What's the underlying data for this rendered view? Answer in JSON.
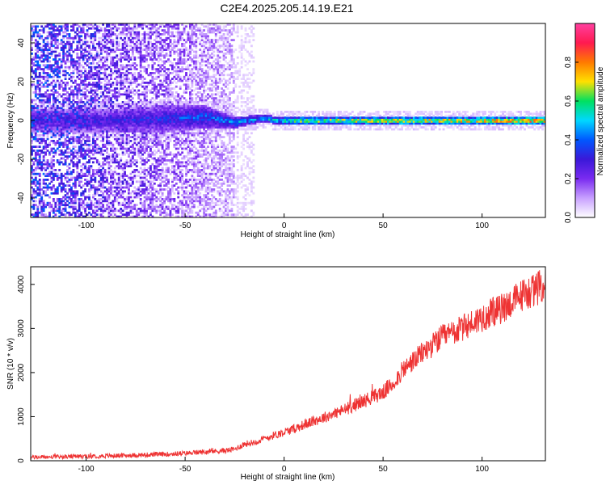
{
  "title": "C2E4.2025.205.14.19.E21",
  "chart_data": [
    {
      "type": "heatmap",
      "xlabel": "Height of straight line (km)",
      "ylabel": "Frequency (Hz)",
      "xlim": [
        -128,
        132
      ],
      "ylim": [
        -50,
        50
      ],
      "x_ticks": [
        -100,
        -50,
        0,
        50,
        100
      ],
      "y_ticks": [
        -40,
        -20,
        0,
        20,
        40
      ],
      "colorbar": {
        "label": "Normalized spectral amplitude",
        "range": [
          0,
          1
        ],
        "ticks": [
          "0.0",
          "0.2",
          "0.4",
          "0.6",
          "0.8"
        ],
        "colormap": [
          "#ffffff",
          "#c8a0ff",
          "#7a2bf0",
          "#3a18d8",
          "#0058ff",
          "#00d8ff",
          "#00e060",
          "#ffe000",
          "#ff7a00",
          "#ff1a50",
          "#ff40a0"
        ]
      },
      "band": [
        {
          "x": -90,
          "center": 0,
          "halfwidth": 6,
          "amp": 0.3
        },
        {
          "x": -60,
          "center": 1,
          "halfwidth": 7,
          "amp": 0.35
        },
        {
          "x": -40,
          "center": 2,
          "halfwidth": 6,
          "amp": 0.4
        },
        {
          "x": -25,
          "center": -1,
          "halfwidth": 3,
          "amp": 0.45
        },
        {
          "x": -12,
          "center": 1,
          "halfwidth": 2,
          "amp": 0.5
        },
        {
          "x": 0,
          "center": 0,
          "halfwidth": 2,
          "amp": 0.6
        },
        {
          "x": 10,
          "center": 0,
          "halfwidth": 2,
          "amp": 0.7
        },
        {
          "x": 50,
          "center": 0,
          "halfwidth": 2,
          "amp": 0.75
        },
        {
          "x": 100,
          "center": 0,
          "halfwidth": 2,
          "amp": 0.8
        },
        {
          "x": 130,
          "center": 0,
          "halfwidth": 2,
          "amp": 0.85
        }
      ],
      "grid": false
    },
    {
      "type": "line",
      "xlabel": "Height of straight line (km)",
      "ylabel": "SNR (10 * v/v)",
      "xlim": [
        -128,
        132
      ],
      "ylim": [
        0,
        4400
      ],
      "x_ticks": [
        -100,
        -50,
        0,
        50,
        100
      ],
      "y_ticks": [
        0,
        1000,
        2000,
        3000,
        4000
      ],
      "color": "#ee3333",
      "series": [
        {
          "x": [
            -128,
            -110,
            -100,
            -80,
            -60,
            -50,
            -40,
            -30,
            -25,
            -20,
            -15,
            -10,
            -5,
            0,
            5,
            10,
            20,
            30,
            40,
            50,
            55,
            60,
            70,
            80,
            90,
            100,
            110,
            120,
            132
          ],
          "y": [
            80,
            90,
            100,
            120,
            150,
            170,
            200,
            230,
            260,
            380,
            420,
            500,
            580,
            650,
            720,
            820,
            980,
            1150,
            1350,
            1550,
            1750,
            2050,
            2450,
            2800,
            3000,
            3250,
            3450,
            3750,
            4000
          ]
        }
      ],
      "grid": false
    }
  ]
}
